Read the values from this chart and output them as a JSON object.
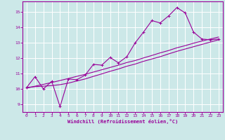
{
  "xlabel": "Windchill (Refroidissement éolien,°C)",
  "bg_color": "#cce8e8",
  "line_color": "#990099",
  "grid_color": "#ffffff",
  "xlim": [
    -0.5,
    23.5
  ],
  "ylim": [
    8.5,
    15.7
  ],
  "xticks": [
    0,
    1,
    2,
    3,
    4,
    5,
    6,
    7,
    8,
    9,
    10,
    11,
    12,
    13,
    14,
    15,
    16,
    17,
    18,
    19,
    20,
    21,
    22,
    23
  ],
  "yticks": [
    9,
    10,
    11,
    12,
    13,
    14,
    15
  ],
  "line1_x": [
    0,
    1,
    2,
    3,
    4,
    5,
    6,
    7,
    8,
    9,
    10,
    11,
    12,
    13,
    14,
    15,
    16,
    17,
    18,
    19,
    20,
    21,
    22,
    23
  ],
  "line1_y": [
    10.1,
    10.8,
    10.0,
    10.5,
    8.85,
    10.65,
    10.6,
    10.9,
    11.6,
    11.55,
    12.05,
    11.7,
    12.1,
    13.0,
    13.7,
    14.45,
    14.3,
    14.75,
    15.3,
    14.95,
    13.7,
    13.25,
    13.2,
    13.25
  ],
  "line2_x": [
    0,
    1,
    2,
    3,
    4,
    5,
    6,
    7,
    8,
    9,
    10,
    11,
    12,
    13,
    14,
    15,
    16,
    17,
    18,
    19,
    20,
    21,
    22,
    23
  ],
  "line2_y": [
    10.1,
    10.15,
    10.18,
    10.22,
    10.28,
    10.38,
    10.52,
    10.65,
    10.82,
    10.98,
    11.15,
    11.3,
    11.48,
    11.62,
    11.8,
    11.95,
    12.1,
    12.28,
    12.45,
    12.6,
    12.75,
    12.9,
    13.05,
    13.2
  ],
  "line3_x": [
    0,
    1,
    2,
    3,
    4,
    5,
    6,
    7,
    8,
    9,
    10,
    11,
    12,
    13,
    14,
    15,
    16,
    17,
    18,
    19,
    20,
    21,
    22,
    23
  ],
  "line3_y": [
    10.05,
    10.18,
    10.3,
    10.42,
    10.55,
    10.68,
    10.82,
    10.95,
    11.1,
    11.25,
    11.4,
    11.55,
    11.72,
    11.85,
    12.02,
    12.18,
    12.35,
    12.5,
    12.68,
    12.82,
    12.98,
    13.12,
    13.25,
    13.38
  ]
}
